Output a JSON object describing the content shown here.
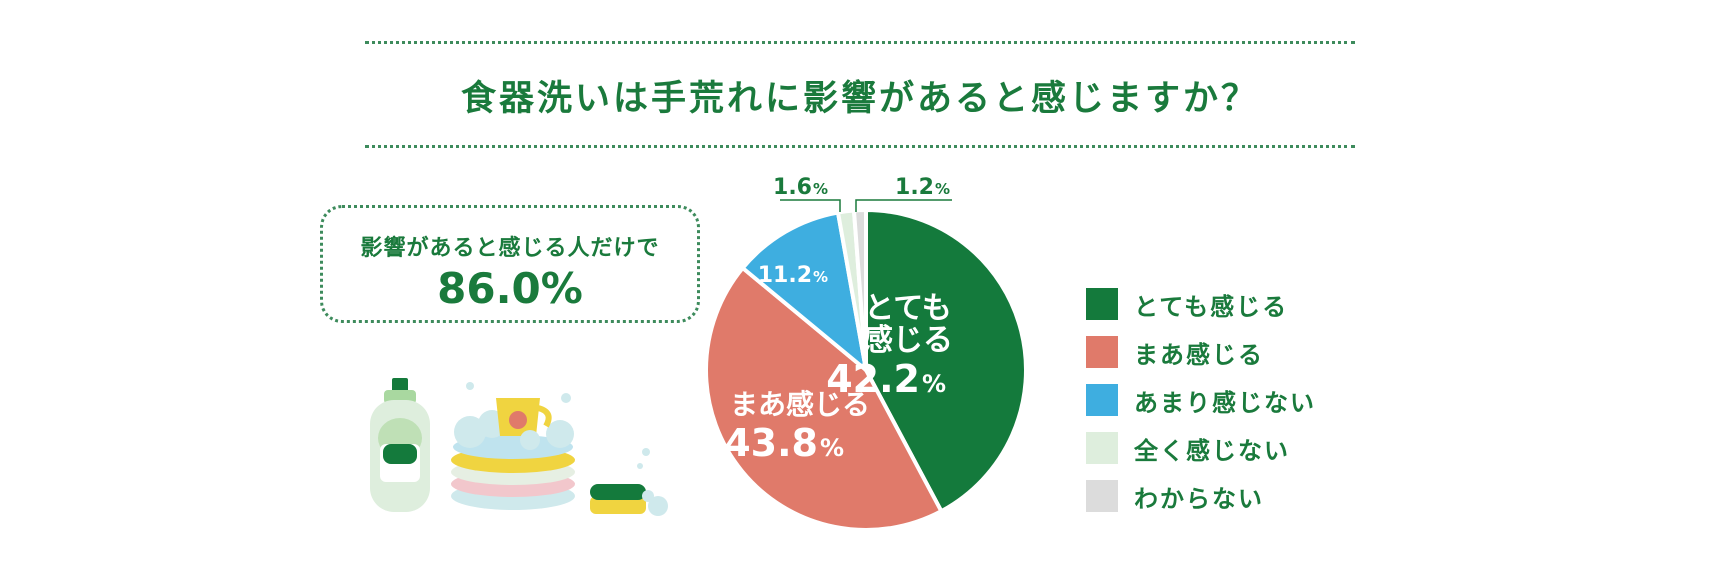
{
  "title": "食器洗いは手荒れに影響があると感じますか？",
  "callout": {
    "text": "影響があると感じる人だけで",
    "value": "86.0%"
  },
  "colors": {
    "green": "#147a3c",
    "salmon": "#e07a6a",
    "blue": "#3eaee0",
    "pale": "#deeedd",
    "gray": "#dcdcdc"
  },
  "chart_data": {
    "type": "pie",
    "series": [
      {
        "label": "とても感じる",
        "value": 42.2,
        "color": "#147a3c"
      },
      {
        "label": "まあ感じる",
        "value": 43.8,
        "color": "#e07a6a"
      },
      {
        "label": "あまり感じない",
        "value": 11.2,
        "color": "#3eaee0"
      },
      {
        "label": "全く感じない",
        "value": 1.6,
        "color": "#deeedd"
      },
      {
        "label": "わからない",
        "value": 1.2,
        "color": "#dcdcdc"
      }
    ],
    "slice_labels": {
      "s0_line1": "とても",
      "s0_line2": "感じる",
      "s0_num": "42.2",
      "s1_line1": "まあ感じる",
      "s1_num": "43.8",
      "s2_num": "11.2",
      "s3_num": "1.6",
      "s4_num": "1.2",
      "pct": "%"
    },
    "legend_position": "right"
  },
  "legend": [
    {
      "label": "とても感じる",
      "color": "#147a3c"
    },
    {
      "label": "まあ感じる",
      "color": "#e07a6a"
    },
    {
      "label": "あまり感じない",
      "color": "#3eaee0"
    },
    {
      "label": "全く感じない",
      "color": "#deeedd"
    },
    {
      "label": "わからない",
      "color": "#dcdcdc"
    }
  ],
  "illustration_icons": [
    "detergent-bottle-icon",
    "stacked-plates-icon",
    "sponge-icon"
  ]
}
